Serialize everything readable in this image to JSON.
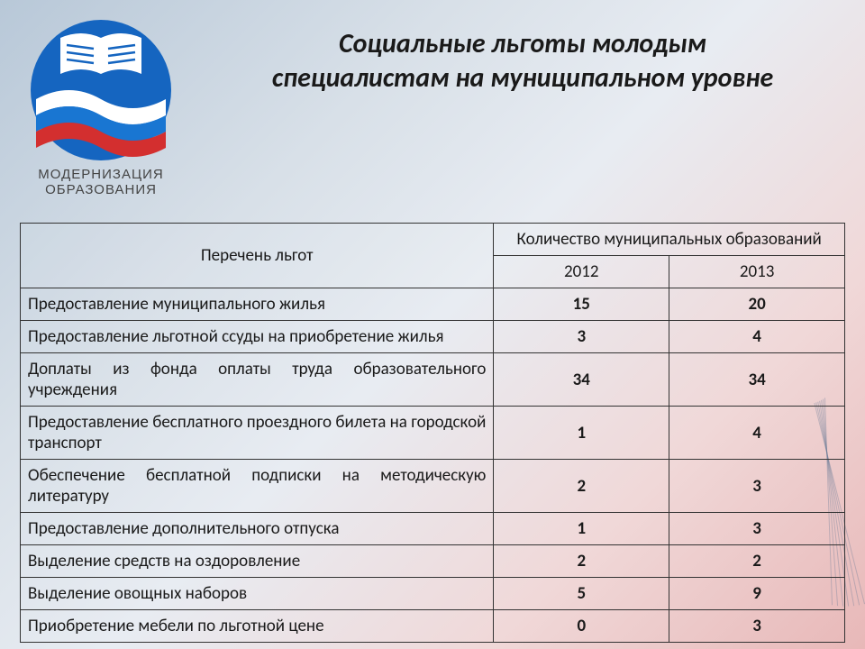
{
  "title_line1": "Социальные льготы молодым",
  "title_line2": "специалистам на муниципальном уровне",
  "logo": {
    "text_line1": "МОДЕРНИЗАЦИЯ",
    "text_line2": "ОБРАЗОВАНИЯ",
    "circle_color": "#1565c0",
    "book_color": "#ffffff",
    "wave_white": "#ffffff",
    "wave_blue": "#1976d2",
    "wave_red": "#d32f2f"
  },
  "table": {
    "header": {
      "benefits": "Перечень льгот",
      "count": "Количество муниципальных образований",
      "year1": "2012",
      "year2": "2013"
    },
    "rows": [
      {
        "label": "Предоставление муниципального жилья",
        "v1": "15",
        "v2": "20",
        "justify": false
      },
      {
        "label": "Предоставление льготной ссуды на приобретение жилья",
        "v1": "3",
        "v2": "4",
        "justify": false
      },
      {
        "label": "Доплаты из фонда оплаты труда образовательного учреждения",
        "v1": "34",
        "v2": "34",
        "justify": true
      },
      {
        "label": "Предоставление бесплатного проездного билета на городской транспорт",
        "v1": "1",
        "v2": "4",
        "justify": true
      },
      {
        "label": "Обеспечение бесплатной подписки на методическую литературу",
        "v1": "2",
        "v2": "3",
        "justify": true
      },
      {
        "label": "Предоставление дополнительного отпуска",
        "v1": "1",
        "v2": "3",
        "justify": false
      },
      {
        "label": "Выделение средств на оздоровление",
        "v1": "2",
        "v2": "2",
        "justify": false
      },
      {
        "label": "Выделение овощных наборов",
        "v1": "5",
        "v2": "9",
        "justify": false
      },
      {
        "label": "Приобретение мебели по льготной цене",
        "v1": "0",
        "v2": "3",
        "justify": false
      }
    ]
  },
  "colors": {
    "text": "#1a1a1a",
    "border": "#333333"
  }
}
